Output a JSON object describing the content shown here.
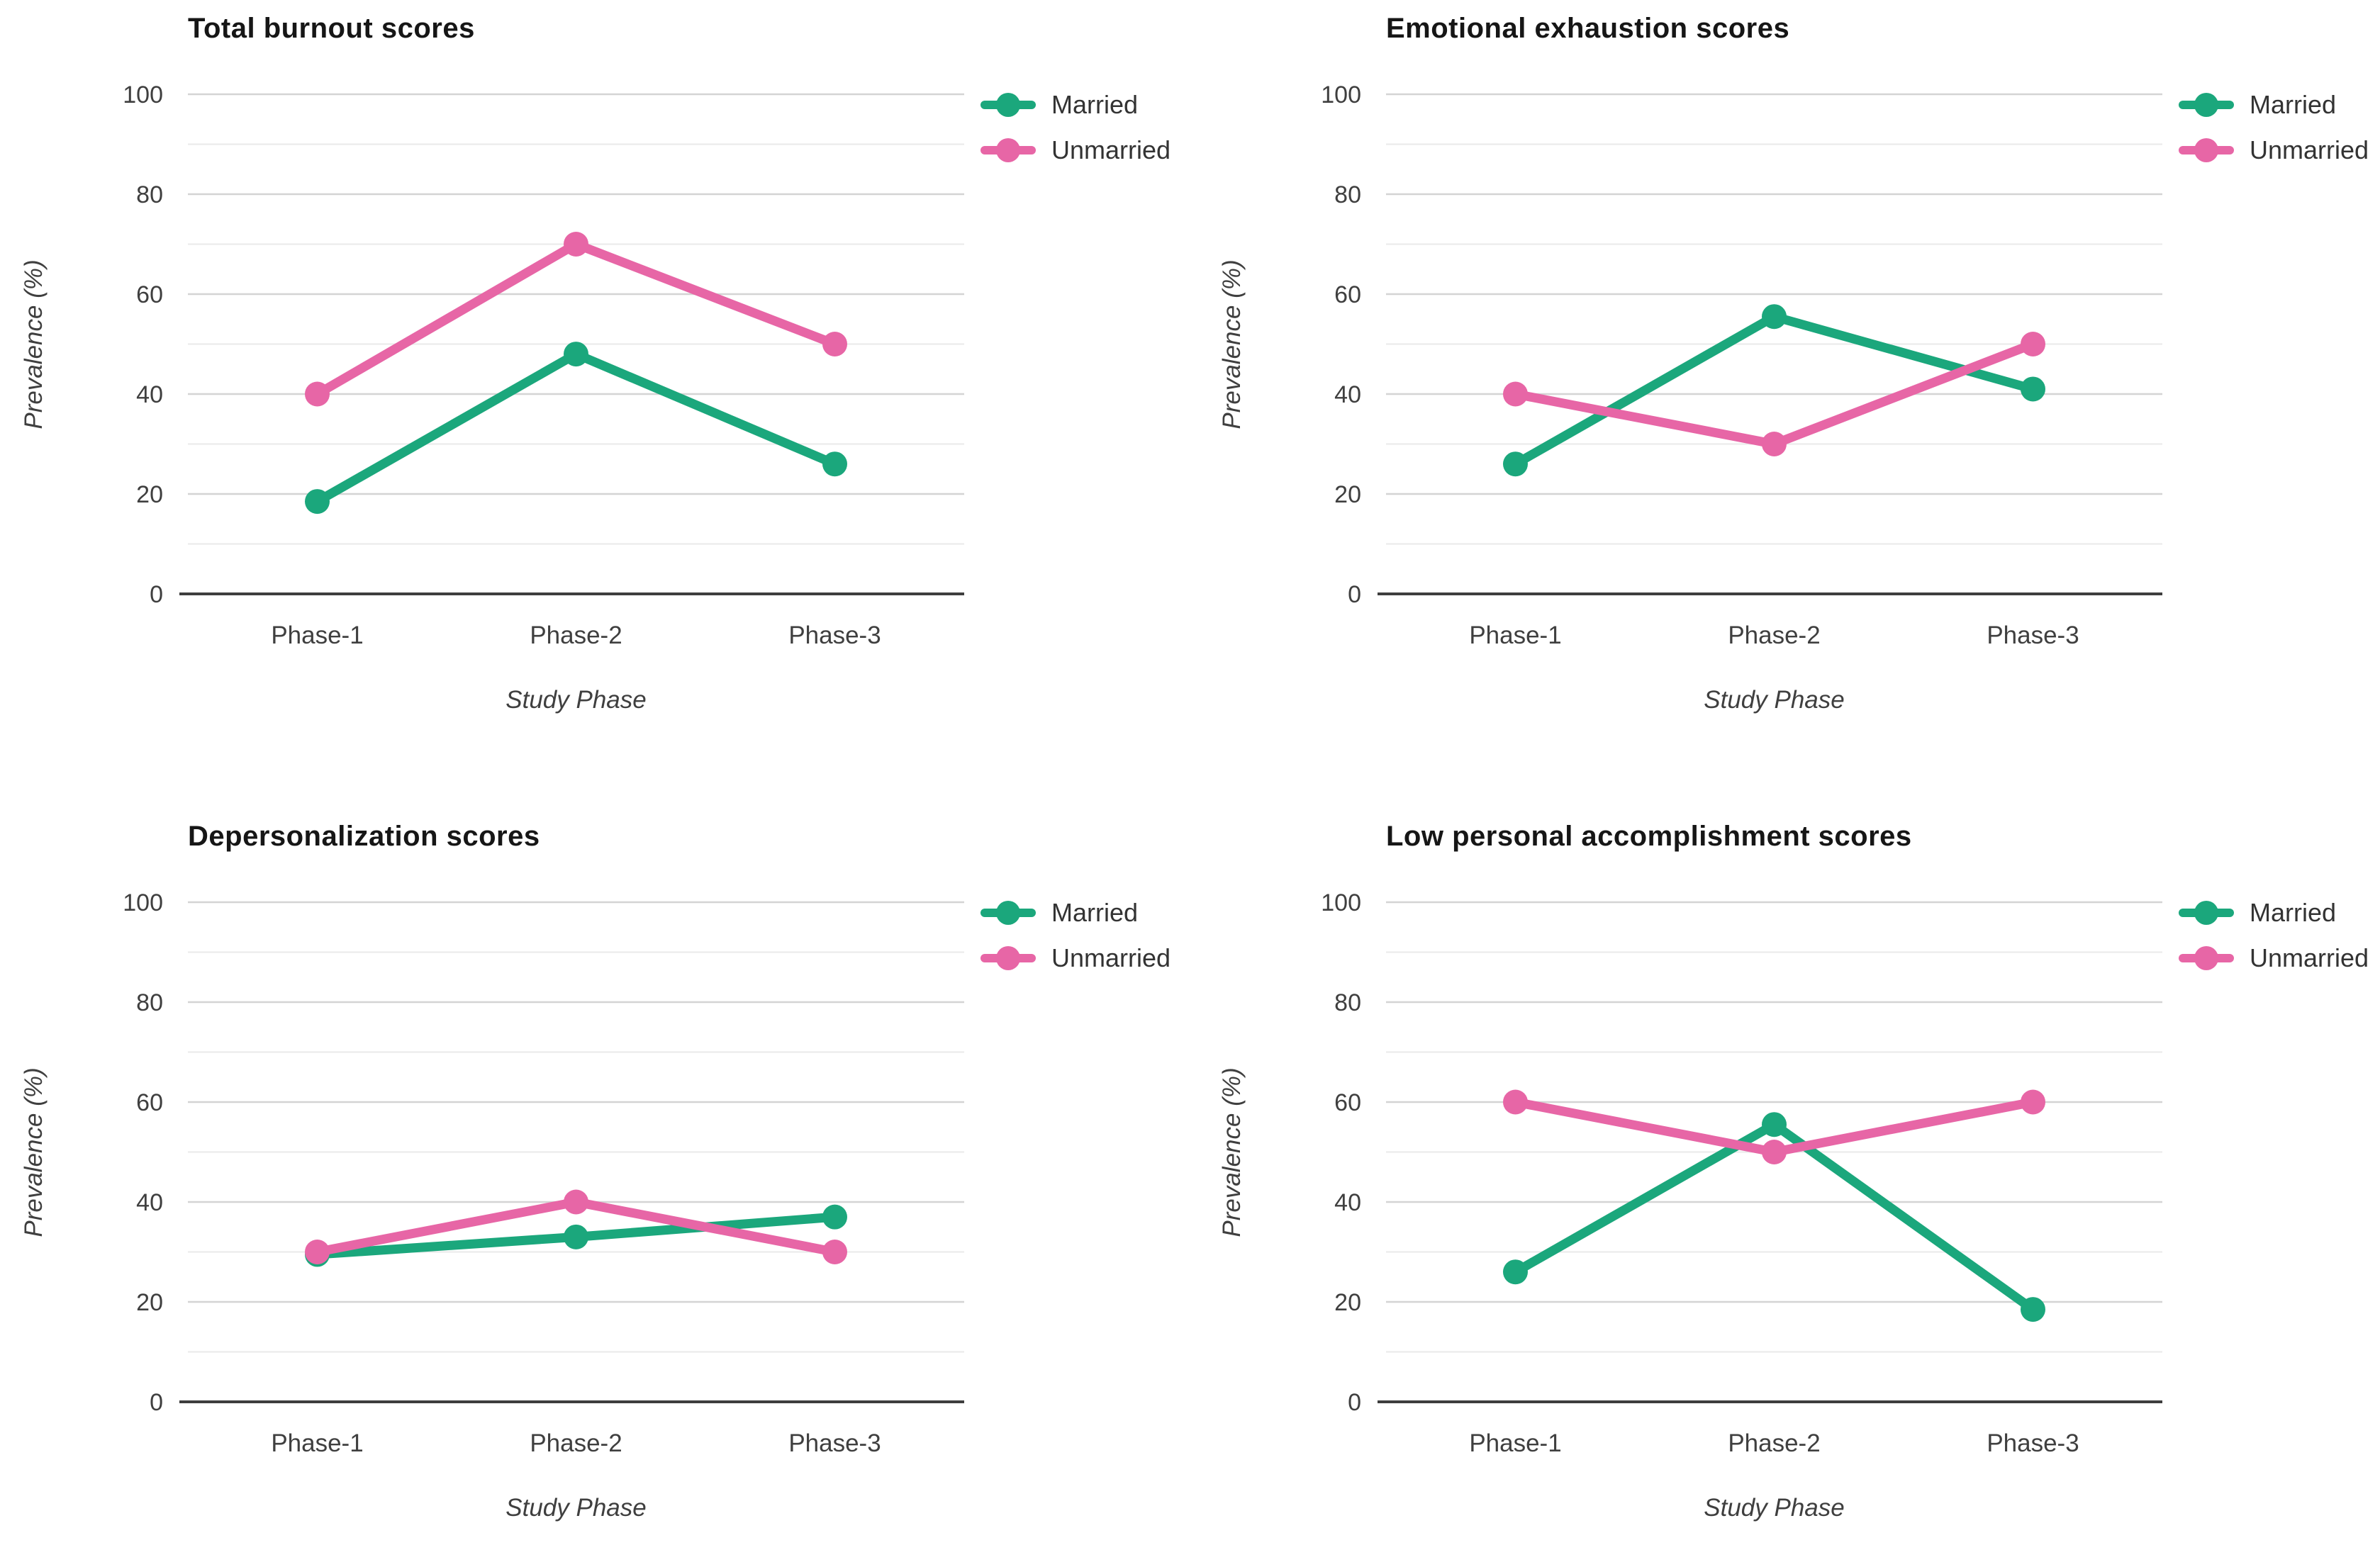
{
  "page": {
    "background": "#ffffff",
    "layout": "2x2 grid of line charts"
  },
  "styles": {
    "major_gridline": "#d4d4d4",
    "minor_gridline": "#eaeaea",
    "axis_line": "#3e3e3e",
    "tick_text": "#3f3f3f",
    "title_color": "#161616",
    "married_color": "#1ba77c",
    "unmarried_color": "#e766a6"
  },
  "chart_data": [
    {
      "type": "line",
      "title": "Total burnout scores",
      "xlabel": "Study Phase",
      "ylabel": "Prevalence (%)",
      "categories": [
        "Phase-1",
        "Phase-2",
        "Phase-3"
      ],
      "ylim": [
        0,
        100
      ],
      "yticks": [
        0,
        20,
        40,
        60,
        80,
        100
      ],
      "minor_gridline_step": 10,
      "grid": true,
      "legend_position": "top-right",
      "series": [
        {
          "name": "Married",
          "color": "#1ba77c",
          "values": [
            18.5,
            48,
            26
          ]
        },
        {
          "name": "Unmarried",
          "color": "#e766a6",
          "values": [
            40,
            70,
            50
          ]
        }
      ]
    },
    {
      "type": "line",
      "title": "Emotional exhaustion scores",
      "xlabel": "Study Phase",
      "ylabel": "Prevalence (%)",
      "categories": [
        "Phase-1",
        "Phase-2",
        "Phase-3"
      ],
      "ylim": [
        0,
        100
      ],
      "yticks": [
        0,
        20,
        40,
        60,
        80,
        100
      ],
      "minor_gridline_step": 10,
      "grid": true,
      "legend_position": "top-right",
      "series": [
        {
          "name": "Married",
          "color": "#1ba77c",
          "values": [
            26,
            55.5,
            41
          ]
        },
        {
          "name": "Unmarried",
          "color": "#e766a6",
          "values": [
            40,
            30,
            50
          ]
        }
      ]
    },
    {
      "type": "line",
      "title": "Depersonalization scores",
      "xlabel": "Study Phase",
      "ylabel": "Prevalence (%)",
      "categories": [
        "Phase-1",
        "Phase-2",
        "Phase-3"
      ],
      "ylim": [
        0,
        100
      ],
      "yticks": [
        0,
        20,
        40,
        60,
        80,
        100
      ],
      "minor_gridline_step": 10,
      "grid": true,
      "legend_position": "top-right",
      "series": [
        {
          "name": "Married",
          "color": "#1ba77c",
          "values": [
            29.5,
            33,
            37
          ]
        },
        {
          "name": "Unmarried",
          "color": "#e766a6",
          "values": [
            30,
            40,
            30
          ]
        }
      ]
    },
    {
      "type": "line",
      "title": "Low personal accomplishment scores",
      "xlabel": "Study Phase",
      "ylabel": "Prevalence (%)",
      "categories": [
        "Phase-1",
        "Phase-2",
        "Phase-3"
      ],
      "ylim": [
        0,
        100
      ],
      "yticks": [
        0,
        20,
        40,
        60,
        80,
        100
      ],
      "minor_gridline_step": 10,
      "grid": true,
      "legend_position": "top-right",
      "series": [
        {
          "name": "Married",
          "color": "#1ba77c",
          "values": [
            26,
            55.5,
            18.5
          ]
        },
        {
          "name": "Unmarried",
          "color": "#e766a6",
          "values": [
            60,
            50,
            60
          ]
        }
      ]
    }
  ]
}
